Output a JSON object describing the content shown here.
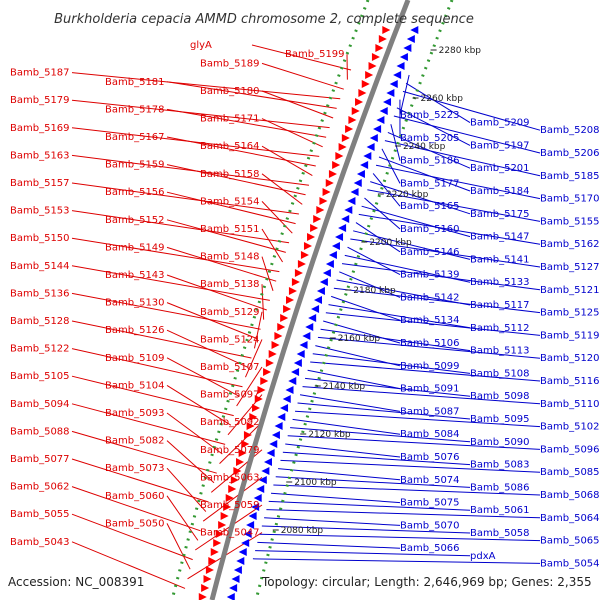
{
  "title": "Burkholderia cepacia AMMD chromosome 2, complete sequence",
  "footer": {
    "accession": "Accession: NC_008391",
    "summary": "Topology: circular; Length: 2,646,969 bp; Genes: 2,355"
  },
  "colors": {
    "forward_label": "#dd0000",
    "reverse_label": "#0000cc",
    "forward_arrow": "#ff0000",
    "reverse_arrow": "#0000ff",
    "backbone": "#808080",
    "dots": "#339933"
  },
  "kbp_ticks": [
    "2080 kbp",
    "2100 kbp",
    "2120 kbp",
    "2140 kbp",
    "2160 kbp",
    "2180 kbp",
    "2200 kbp",
    "2220 kbp",
    "2240 kbp",
    "2260 kbp",
    "2280 kbp"
  ],
  "left_labels": [
    "glyA",
    "Bamb_5199",
    "Bamb_5189",
    "Bamb_5187",
    "Bamb_5181",
    "Bamb_5180",
    "Bamb_5179",
    "Bamb_5178",
    "Bamb_5171",
    "Bamb_5169",
    "Bamb_5167",
    "Bamb_5164",
    "Bamb_5163",
    "Bamb_5159",
    "Bamb_5158",
    "Bamb_5157",
    "Bamb_5156",
    "Bamb_5154",
    "Bamb_5153",
    "Bamb_5152",
    "Bamb_5151",
    "Bamb_5150",
    "Bamb_5149",
    "Bamb_5148",
    "Bamb_5144",
    "Bamb_5143",
    "Bamb_5138",
    "Bamb_5136",
    "Bamb_5130",
    "Bamb_5129",
    "Bamb_5128",
    "Bamb_5126",
    "Bamb_5124",
    "Bamb_5122",
    "Bamb_5109",
    "Bamb_5107",
    "Bamb_5105",
    "Bamb_5104",
    "Bamb_5097",
    "Bamb_5094",
    "Bamb_5093",
    "Bamb_5092",
    "Bamb_5088",
    "Bamb_5082",
    "Bamb_5079",
    "Bamb_5077",
    "Bamb_5073",
    "Bamb_5063",
    "Bamb_5062",
    "Bamb_5060",
    "Bamb_5059",
    "Bamb_5055",
    "Bamb_5050",
    "Bamb_5047",
    "Bamb_5043"
  ],
  "right_labels": [
    "Bamb_5223",
    "Bamb_5209",
    "Bamb_5208",
    "Bamb_5205",
    "Bamb_5197",
    "Bamb_5206",
    "Bamb_5186",
    "Bamb_5201",
    "Bamb_5185",
    "Bamb_5177",
    "Bamb_5184",
    "Bamb_5170",
    "Bamb_5165",
    "Bamb_5175",
    "Bamb_5155",
    "Bamb_5160",
    "Bamb_5147",
    "Bamb_5162",
    "Bamb_5146",
    "Bamb_5141",
    "Bamb_5127",
    "Bamb_5139",
    "Bamb_5133",
    "Bamb_5121",
    "Bamb_5142",
    "Bamb_5117",
    "Bamb_5125",
    "Bamb_5134",
    "Bamb_5112",
    "Bamb_5119",
    "Bamb_5106",
    "Bamb_5113",
    "Bamb_5120",
    "Bamb_5099",
    "Bamb_5108",
    "Bamb_5116",
    "Bamb_5091",
    "Bamb_5098",
    "Bamb_5110",
    "Bamb_5087",
    "Bamb_5095",
    "Bamb_5102",
    "Bamb_5084",
    "Bamb_5090",
    "Bamb_5096",
    "Bamb_5076",
    "Bamb_5083",
    "Bamb_5085",
    "Bamb_5074",
    "Bamb_5086",
    "Bamb_5068",
    "Bamb_5075",
    "Bamb_5061",
    "Bamb_5064",
    "Bamb_5070",
    "Bamb_5058",
    "Bamb_5065",
    "Bamb_5066",
    "pdxA",
    "Bamb_5054"
  ]
}
